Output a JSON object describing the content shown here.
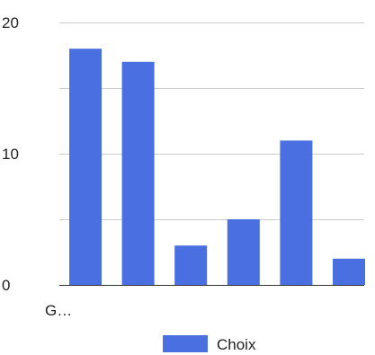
{
  "chart_data": {
    "type": "bar",
    "categories": [
      "G…",
      "",
      "",
      "",
      "",
      ""
    ],
    "series": [
      {
        "name": "Choix",
        "values": [
          18,
          17,
          3,
          5,
          11,
          2
        ],
        "color": "#4a6fe0"
      }
    ],
    "ylim": [
      0,
      20
    ],
    "yticks": [
      0,
      10,
      20
    ],
    "gridlines": [
      0,
      5,
      10,
      15,
      20
    ],
    "grid": true,
    "legend": {
      "position": "bottom",
      "label": "Choix"
    },
    "xlabel": "",
    "ylabel": "",
    "title": ""
  }
}
